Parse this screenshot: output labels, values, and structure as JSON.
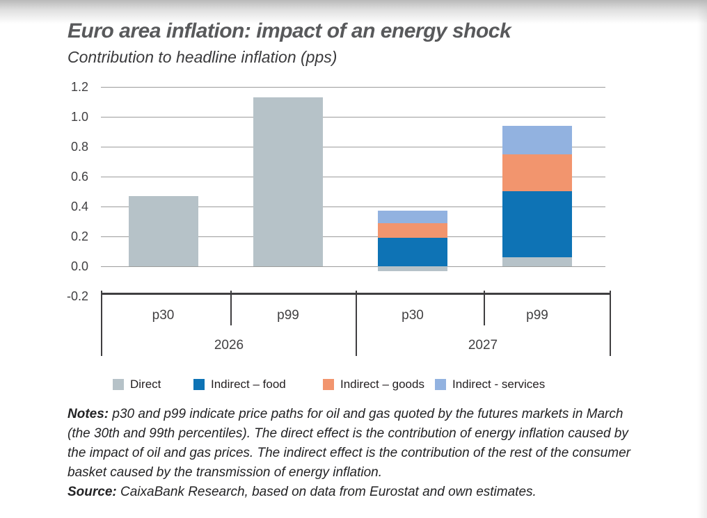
{
  "page": {
    "title": "Euro area inflation: impact of an energy shock",
    "subtitle": "Contribution to headline inflation (pps)"
  },
  "chart_data": {
    "type": "bar",
    "stacked": true,
    "title": "Euro area inflation: impact of an energy shock",
    "subtitle": "Contribution to headline inflation (pps)",
    "unit": "pps",
    "categories": [
      "p30",
      "p99",
      "p30",
      "p99"
    ],
    "groups": [
      {
        "label": "2026",
        "categories": [
          "p30",
          "p99"
        ]
      },
      {
        "label": "2027",
        "categories": [
          "p30",
          "p99"
        ]
      }
    ],
    "series": [
      {
        "name": "Direct",
        "color": "#b6c2c8",
        "values": [
          0.47,
          1.13,
          -0.03,
          0.06
        ]
      },
      {
        "name": "Indirect – food",
        "color": "#0e73b5",
        "values": [
          0,
          0,
          0.19,
          0.44
        ]
      },
      {
        "name": "Indirect – goods",
        "color": "#f2956e",
        "values": [
          0,
          0,
          0.1,
          0.25
        ]
      },
      {
        "name": "Indirect - services",
        "color": "#92b2e0",
        "values": [
          0,
          0,
          0.08,
          0.19
        ]
      }
    ],
    "yticks": [
      "1.2",
      "1.0",
      "0.8",
      "0.6",
      "0.4",
      "0.2",
      "0.0",
      "-0.2"
    ],
    "ylim": [
      -0.2,
      1.2
    ],
    "grid": true,
    "legend_position": "bottom",
    "colors": {
      "gridline": "#9c9c9c",
      "axis": "#3f3e40",
      "title": "#58595b",
      "labels": "#414042"
    }
  },
  "notes": {
    "notes_label": "Notes:",
    "notes_text": " p30 and p99 indicate price paths for oil and gas quoted by the futures markets in March (the 30th and 99th percentiles). The direct effect is the contribution of energy inflation caused by the impact of oil and gas prices. The indirect effect is the contribution of the rest of the consumer basket caused by the transmission of energy inflation.",
    "source_label": "Source:",
    "source_text": " CaixaBank Research, based on data from Eurostat and own estimates."
  }
}
